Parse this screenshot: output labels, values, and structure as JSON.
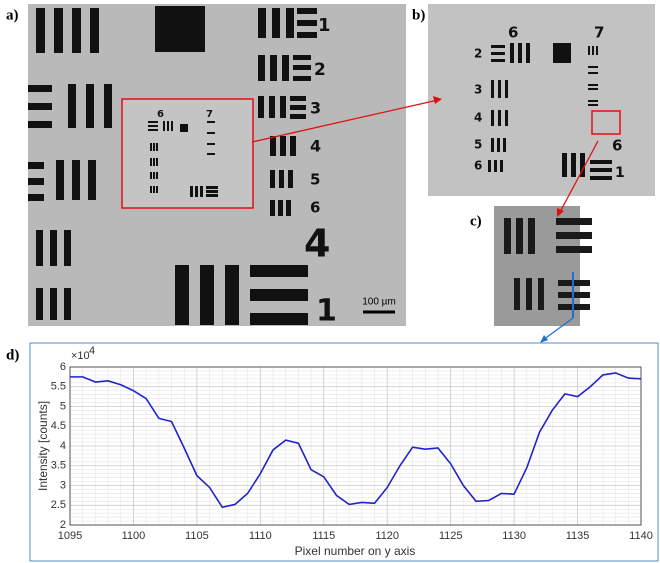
{
  "panels": {
    "a": {
      "label": "a)",
      "digits": [
        "1",
        "2",
        "3",
        "4",
        "5",
        "6",
        "4",
        "1"
      ],
      "inset_digits": [
        "6",
        "7"
      ],
      "scale_bar": "100 µm"
    },
    "b": {
      "label": "b)",
      "digits": [
        "6",
        "7",
        "2",
        "3",
        "4",
        "5",
        "6",
        "6",
        "1"
      ]
    },
    "c": {
      "label": "c)"
    },
    "d": {
      "label": "d)"
    }
  },
  "chart_data": {
    "type": "line",
    "x_label": "Pixel number on y axis",
    "y_label": "Intensity [counts]",
    "y_exponent": {
      "base": "×10",
      "power": "4"
    },
    "x": [
      1095,
      1096,
      1097,
      1098,
      1099,
      1100,
      1101,
      1102,
      1103,
      1104,
      1105,
      1106,
      1107,
      1108,
      1109,
      1110,
      1111,
      1112,
      1113,
      1114,
      1115,
      1116,
      1117,
      1118,
      1119,
      1120,
      1121,
      1122,
      1123,
      1124,
      1125,
      1126,
      1127,
      1128,
      1129,
      1130,
      1131,
      1132,
      1133,
      1134,
      1135,
      1136,
      1137,
      1138,
      1139,
      1140
    ],
    "series": [
      {
        "color": "#2222cc",
        "values": [
          5.75,
          5.75,
          5.62,
          5.65,
          5.55,
          5.4,
          5.2,
          4.7,
          4.62,
          3.95,
          3.25,
          2.95,
          2.45,
          2.52,
          2.8,
          3.3,
          3.9,
          4.15,
          4.07,
          3.4,
          3.22,
          2.75,
          2.52,
          2.57,
          2.55,
          2.95,
          3.5,
          3.97,
          3.92,
          3.95,
          3.55,
          3.0,
          2.6,
          2.62,
          2.8,
          2.78,
          3.45,
          4.35,
          4.9,
          5.32,
          5.25,
          5.5,
          5.8,
          5.85,
          5.72,
          5.7
        ]
      }
    ],
    "xlim": [
      1095,
      1140
    ],
    "xticks": [
      1095,
      1100,
      1105,
      1110,
      1115,
      1120,
      1125,
      1130,
      1135,
      1140
    ],
    "ylim": [
      2,
      6
    ],
    "yticks": [
      2,
      2.5,
      3,
      3.5,
      4,
      4.5,
      5,
      5.5,
      6
    ],
    "grid": true
  }
}
